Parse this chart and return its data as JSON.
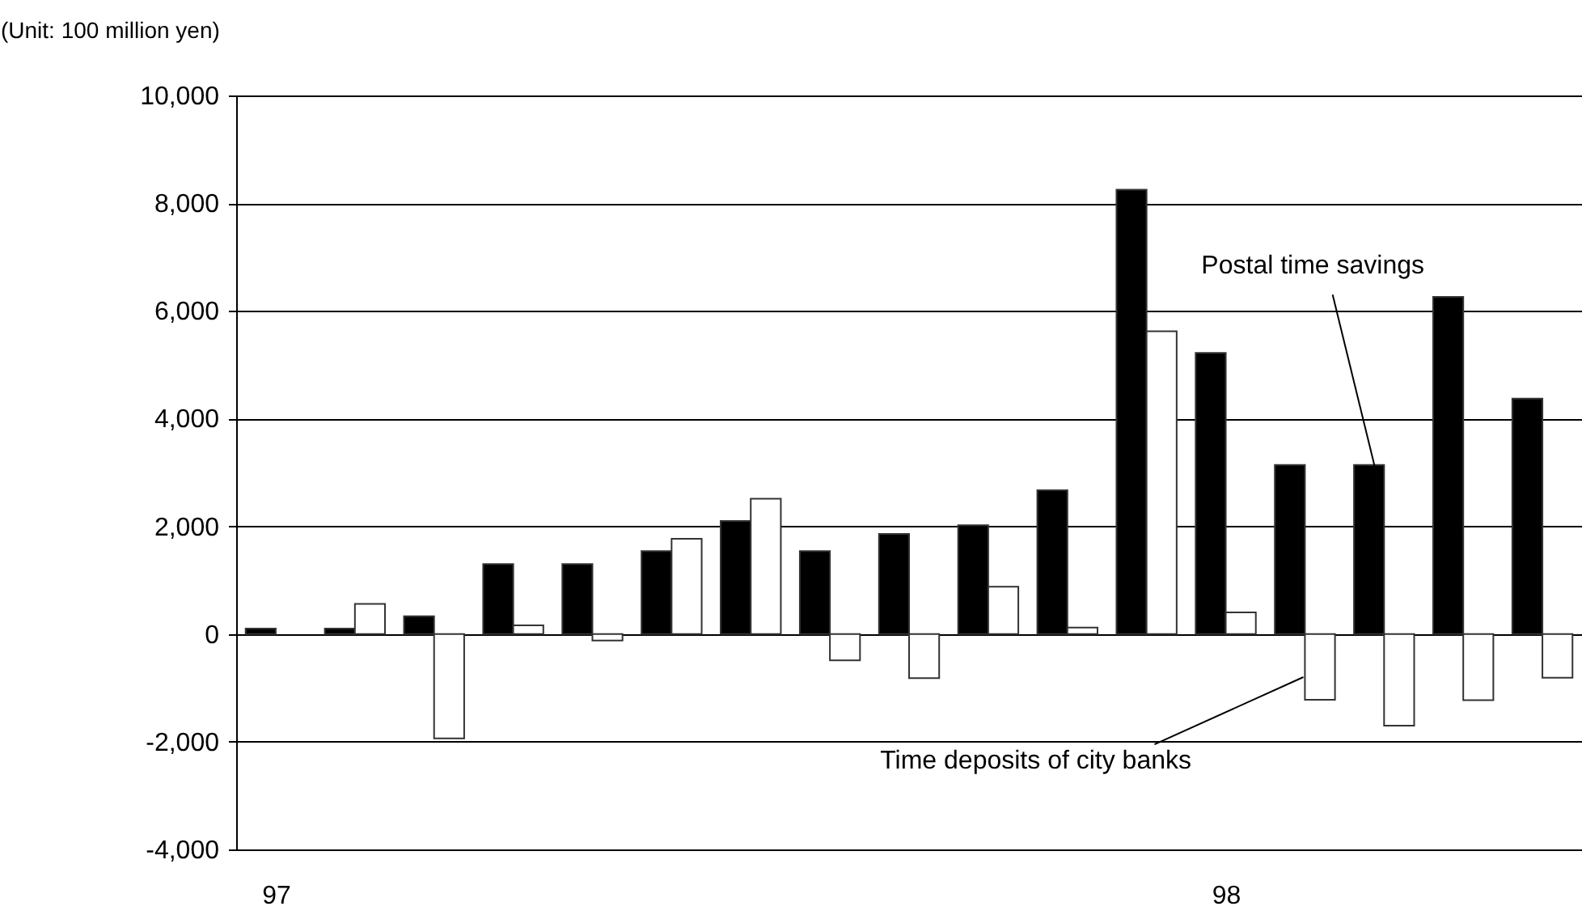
{
  "chart_data": {
    "type": "bar",
    "ylabel": "(Unit: 100 million yen)",
    "categories": [
      "97",
      null,
      null,
      null,
      null,
      null,
      null,
      null,
      null,
      null,
      null,
      null,
      "98",
      null,
      null,
      null,
      null
    ],
    "series": [
      {
        "name": "Postal time savings",
        "color": "#000000",
        "values": [
          100,
          100,
          330,
          1300,
          1300,
          1540,
          2100,
          1540,
          1860,
          2020,
          2670,
          8250,
          5220,
          3140,
          3140,
          6260,
          4370
        ]
      },
      {
        "name": "Time deposits of city banks",
        "color": "#ffffff",
        "values": [
          null,
          560,
          -1940,
          160,
          -120,
          1770,
          2510,
          -490,
          -820,
          880,
          120,
          5620,
          400,
          -1220,
          -1700,
          -1230,
          -810
        ]
      }
    ],
    "ylim": [
      -4000,
      10000
    ],
    "yticks": [
      {
        "value": -4000,
        "label": "-4,000"
      },
      {
        "value": -2000,
        "label": "-2,000"
      },
      {
        "value": 0,
        "label": "0"
      },
      {
        "value": 2000,
        "label": "2,000"
      },
      {
        "value": 4000,
        "label": "4,000"
      },
      {
        "value": 6000,
        "label": "6,000"
      },
      {
        "value": 8000,
        "label": "8,000"
      },
      {
        "value": 10000,
        "label": "10,000"
      }
    ],
    "grid": "y"
  }
}
